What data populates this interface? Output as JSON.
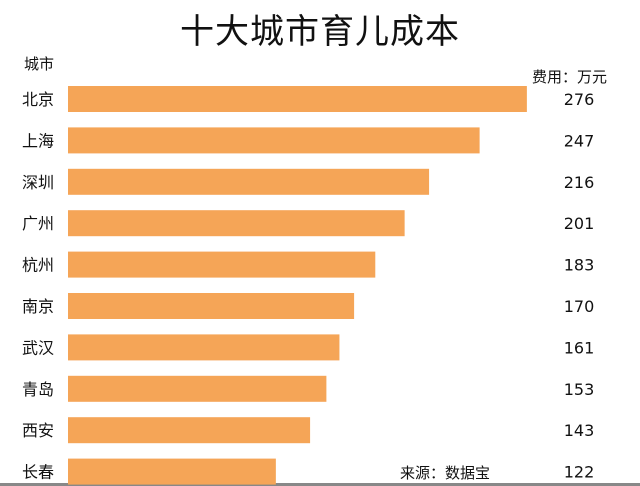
{
  "chart_data": {
    "type": "bar",
    "orientation": "horizontal",
    "title": "十大城市育儿成本",
    "ylabel": "城市",
    "unit_label": "费用：万元",
    "source": "来源：数据宝",
    "categories": [
      "北京",
      "上海",
      "深圳",
      "广州",
      "杭州",
      "南京",
      "武汉",
      "青岛",
      "西安",
      "长春"
    ],
    "values": [
      276,
      247,
      216,
      201,
      183,
      170,
      161,
      153,
      143,
      122
    ],
    "bar_color": "#F5A557",
    "grid": false,
    "legend": "none"
  }
}
